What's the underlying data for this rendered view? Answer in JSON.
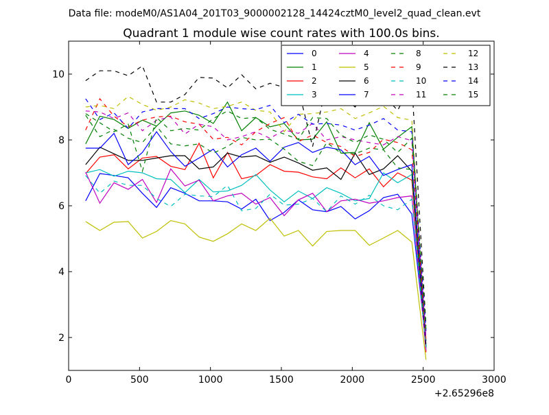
{
  "suptitle": "Data file: modeM0/AS1A04_201T03_9000002128_14424cztM0_level2_quad_clean.evt",
  "chart_data": {
    "type": "line",
    "title": "Quadrant 1 module wise count rates with 100.0s bins.",
    "xlabel": "",
    "ylabel": "",
    "x_offset_label": "+2.65296e8",
    "xlim": [
      0,
      3000
    ],
    "ylim": [
      1,
      11
    ],
    "x_ticks": [
      0,
      500,
      1000,
      1500,
      2000,
      2500,
      3000
    ],
    "y_ticks": [
      2,
      4,
      6,
      8,
      10
    ],
    "grid": false,
    "legend_position": "top-right",
    "legend_columns": 4,
    "x": [
      120,
      220,
      320,
      420,
      520,
      620,
      720,
      820,
      920,
      1020,
      1120,
      1220,
      1320,
      1420,
      1520,
      1620,
      1720,
      1820,
      1920,
      2020,
      2120,
      2220,
      2320,
      2420,
      2520
    ],
    "series": [
      {
        "name": "0",
        "color": "#0000ff",
        "dashed": false,
        "values": [
          6.15,
          6.98,
          6.92,
          6.85,
          6.38,
          5.95,
          6.55,
          6.38,
          6.15,
          6.15,
          6.12,
          5.9,
          6.2,
          5.55,
          5.8,
          6.18,
          5.88,
          5.82,
          5.98,
          5.6,
          5.85,
          6.25,
          6.35,
          5.75,
          1.8
        ]
      },
      {
        "name": "1",
        "color": "#008000",
        "dashed": false,
        "values": [
          7.88,
          8.72,
          8.62,
          8.35,
          8.6,
          8.42,
          8.82,
          8.88,
          8.75,
          8.5,
          9.15,
          8.28,
          8.68,
          8.4,
          8.5,
          8.0,
          8.02,
          8.55,
          7.6,
          7.62,
          8.52,
          7.72,
          8.08,
          8.4,
          1.7
        ]
      },
      {
        "name": "2",
        "color": "#ff0000",
        "dashed": false,
        "values": [
          6.98,
          7.48,
          7.55,
          7.12,
          7.45,
          7.5,
          7.2,
          7.1,
          7.9,
          6.85,
          7.62,
          6.82,
          6.92,
          7.25,
          7.05,
          7.02,
          6.88,
          6.82,
          7.15,
          6.85,
          7.12,
          6.58,
          7.0,
          6.78,
          1.55
        ]
      },
      {
        "name": "3",
        "color": "#00bfbf",
        "dashed": false,
        "values": [
          7.0,
          7.1,
          6.9,
          7.05,
          7.0,
          6.82,
          6.8,
          6.4,
          6.8,
          6.42,
          6.45,
          6.62,
          6.95,
          6.48,
          6.12,
          6.45,
          6.22,
          6.55,
          6.38,
          6.15,
          6.22,
          7.0,
          6.7,
          6.95,
          1.65
        ]
      },
      {
        "name": "4",
        "color": "#bf00bf",
        "dashed": false,
        "values": [
          7.02,
          6.08,
          6.7,
          6.5,
          6.8,
          6.1,
          7.12,
          6.6,
          6.78,
          6.15,
          6.3,
          6.38,
          6.05,
          6.25,
          5.7,
          6.18,
          6.38,
          5.82,
          6.15,
          6.2,
          6.08,
          6.15,
          6.25,
          6.3,
          1.6
        ]
      },
      {
        "name": "5",
        "color": "#bfbf00",
        "dashed": false,
        "values": [
          5.52,
          5.25,
          5.5,
          5.52,
          5.02,
          5.22,
          5.55,
          5.45,
          5.05,
          4.92,
          5.15,
          5.45,
          5.25,
          5.62,
          5.08,
          5.25,
          4.78,
          5.22,
          5.25,
          5.25,
          4.8,
          5.02,
          5.25,
          4.9,
          1.32
        ]
      },
      {
        "name": "6",
        "color": "#000000",
        "dashed": false,
        "values": [
          7.25,
          7.78,
          7.58,
          7.38,
          7.38,
          7.45,
          7.52,
          7.52,
          7.12,
          7.18,
          7.6,
          7.48,
          7.52,
          7.32,
          7.48,
          7.3,
          7.08,
          7.15,
          6.8,
          7.6,
          6.95,
          7.12,
          7.52,
          7.05,
          1.72
        ]
      },
      {
        "name": "7",
        "color": "#0000ff",
        "dashed": false,
        "values": [
          7.75,
          7.75,
          8.2,
          7.25,
          7.62,
          8.25,
          7.65,
          7.2,
          7.45,
          7.72,
          7.18,
          7.55,
          7.75,
          7.35,
          7.78,
          7.92,
          7.62,
          7.78,
          7.7,
          7.25,
          7.5,
          6.92,
          7.1,
          7.25,
          1.9
        ]
      },
      {
        "name": "8",
        "color": "#008000",
        "dashed": true,
        "values": [
          8.75,
          8.1,
          8.32,
          8.05,
          7.92,
          8.42,
          7.88,
          7.82,
          7.88,
          7.6,
          7.8,
          8.08,
          8.0,
          8.02,
          7.72,
          7.35,
          7.22,
          7.92,
          7.6,
          7.58,
          7.75,
          7.7,
          7.15,
          7.1,
          1.85
        ]
      },
      {
        "name": "9",
        "color": "#ff0000",
        "dashed": true,
        "values": [
          8.3,
          9.25,
          8.72,
          8.4,
          8.6,
          8.7,
          8.72,
          8.55,
          8.48,
          8.02,
          8.08,
          7.85,
          8.25,
          8.5,
          8.68,
          7.95,
          8.15,
          7.92,
          7.8,
          7.5,
          7.62,
          8.02,
          7.92,
          7.7,
          1.92
        ]
      },
      {
        "name": "10",
        "color": "#00bfbf",
        "dashed": true,
        "values": [
          6.92,
          6.38,
          6.75,
          6.62,
          6.62,
          6.22,
          5.98,
          6.35,
          6.3,
          6.28,
          6.62,
          5.85,
          5.92,
          6.35,
          6.02,
          6.05,
          6.22,
          5.82,
          6.3,
          6.05,
          6.32,
          6.0,
          5.88,
          6.2,
          1.72
        ]
      },
      {
        "name": "11",
        "color": "#bf00bf",
        "dashed": true,
        "values": [
          8.88,
          8.85,
          8.65,
          8.82,
          8.28,
          8.6,
          8.7,
          8.18,
          8.48,
          8.4,
          8.0,
          8.1,
          8.25,
          8.05,
          8.3,
          8.2,
          8.5,
          8.0,
          8.1,
          8.0,
          7.92,
          7.85,
          8.1,
          7.98,
          2.0
        ]
      },
      {
        "name": "12",
        "color": "#bfbf00",
        "dashed": true,
        "values": [
          9.0,
          9.05,
          8.95,
          9.32,
          9.08,
          8.9,
          9.0,
          9.22,
          9.12,
          8.95,
          9.02,
          9.15,
          8.9,
          8.85,
          8.25,
          8.78,
          8.8,
          8.85,
          8.95,
          8.65,
          8.82,
          9.02,
          8.68,
          8.6,
          2.1
        ]
      },
      {
        "name": "13",
        "color": "#000000",
        "dashed": true,
        "values": [
          9.8,
          10.1,
          10.1,
          9.95,
          10.25,
          9.15,
          9.15,
          9.38,
          9.9,
          9.88,
          9.58,
          9.98,
          9.55,
          9.72,
          9.6,
          9.55,
          7.8,
          9.7,
          9.35,
          9.0,
          9.62,
          9.35,
          8.9,
          9.72,
          2.35
        ]
      },
      {
        "name": "14",
        "color": "#0000ff",
        "dashed": true,
        "values": [
          9.25,
          8.62,
          8.82,
          8.35,
          8.85,
          8.95,
          8.95,
          8.95,
          8.65,
          8.8,
          9.0,
          8.95,
          8.92,
          9.05,
          8.52,
          8.78,
          8.48,
          8.5,
          8.45,
          8.3,
          8.45,
          8.65,
          8.3,
          8.25,
          2.2
        ]
      },
      {
        "name": "15",
        "color": "#008000",
        "dashed": true,
        "values": [
          8.8,
          8.52,
          8.25,
          8.48,
          7.05,
          8.68,
          8.28,
          8.35,
          8.3,
          8.65,
          8.88,
          8.65,
          8.68,
          8.32,
          8.18,
          8.02,
          8.68,
          8.65,
          8.15,
          7.92,
          8.15,
          8.02,
          7.62,
          8.05,
          2.25
        ]
      }
    ]
  }
}
